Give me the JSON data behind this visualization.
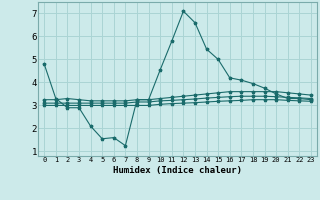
{
  "xlabel": "Humidex (Indice chaleur)",
  "background_color": "#cceaea",
  "grid_color": "#aad4d4",
  "line_color": "#1a6b6b",
  "x_data": [
    0,
    1,
    2,
    3,
    4,
    5,
    6,
    7,
    8,
    9,
    10,
    11,
    12,
    13,
    14,
    15,
    16,
    17,
    18,
    19,
    20,
    21,
    22,
    23
  ],
  "line1": [
    4.8,
    3.3,
    2.9,
    2.9,
    2.1,
    1.55,
    1.6,
    1.25,
    3.25,
    3.25,
    4.55,
    5.8,
    7.1,
    6.6,
    5.45,
    5.0,
    4.2,
    4.1,
    3.95,
    3.75,
    3.5,
    3.3,
    3.3,
    3.25
  ],
  "line2": [
    3.25,
    3.25,
    3.3,
    3.25,
    3.2,
    3.2,
    3.2,
    3.2,
    3.25,
    3.25,
    3.3,
    3.35,
    3.4,
    3.45,
    3.5,
    3.55,
    3.6,
    3.6,
    3.6,
    3.6,
    3.6,
    3.55,
    3.5,
    3.45
  ],
  "line3": [
    3.1,
    3.1,
    3.1,
    3.1,
    3.1,
    3.1,
    3.1,
    3.1,
    3.15,
    3.15,
    3.2,
    3.22,
    3.25,
    3.28,
    3.32,
    3.35,
    3.38,
    3.4,
    3.4,
    3.4,
    3.38,
    3.35,
    3.33,
    3.3
  ],
  "line4": [
    3.0,
    3.0,
    3.0,
    3.0,
    3.0,
    3.0,
    3.0,
    3.0,
    3.0,
    3.0,
    3.05,
    3.08,
    3.1,
    3.12,
    3.15,
    3.18,
    3.2,
    3.22,
    3.25,
    3.25,
    3.25,
    3.22,
    3.2,
    3.18
  ],
  "ylim": [
    0.8,
    7.5
  ],
  "xlim": [
    -0.5,
    23.5
  ],
  "yticks": [
    1,
    2,
    3,
    4,
    5,
    6,
    7
  ],
  "xtick_labels": [
    "0",
    "1",
    "2",
    "3",
    "4",
    "5",
    "6",
    "7",
    "8",
    "9",
    "10",
    "11",
    "12",
    "13",
    "14",
    "15",
    "16",
    "17",
    "18",
    "19",
    "20",
    "21",
    "22",
    "23"
  ]
}
